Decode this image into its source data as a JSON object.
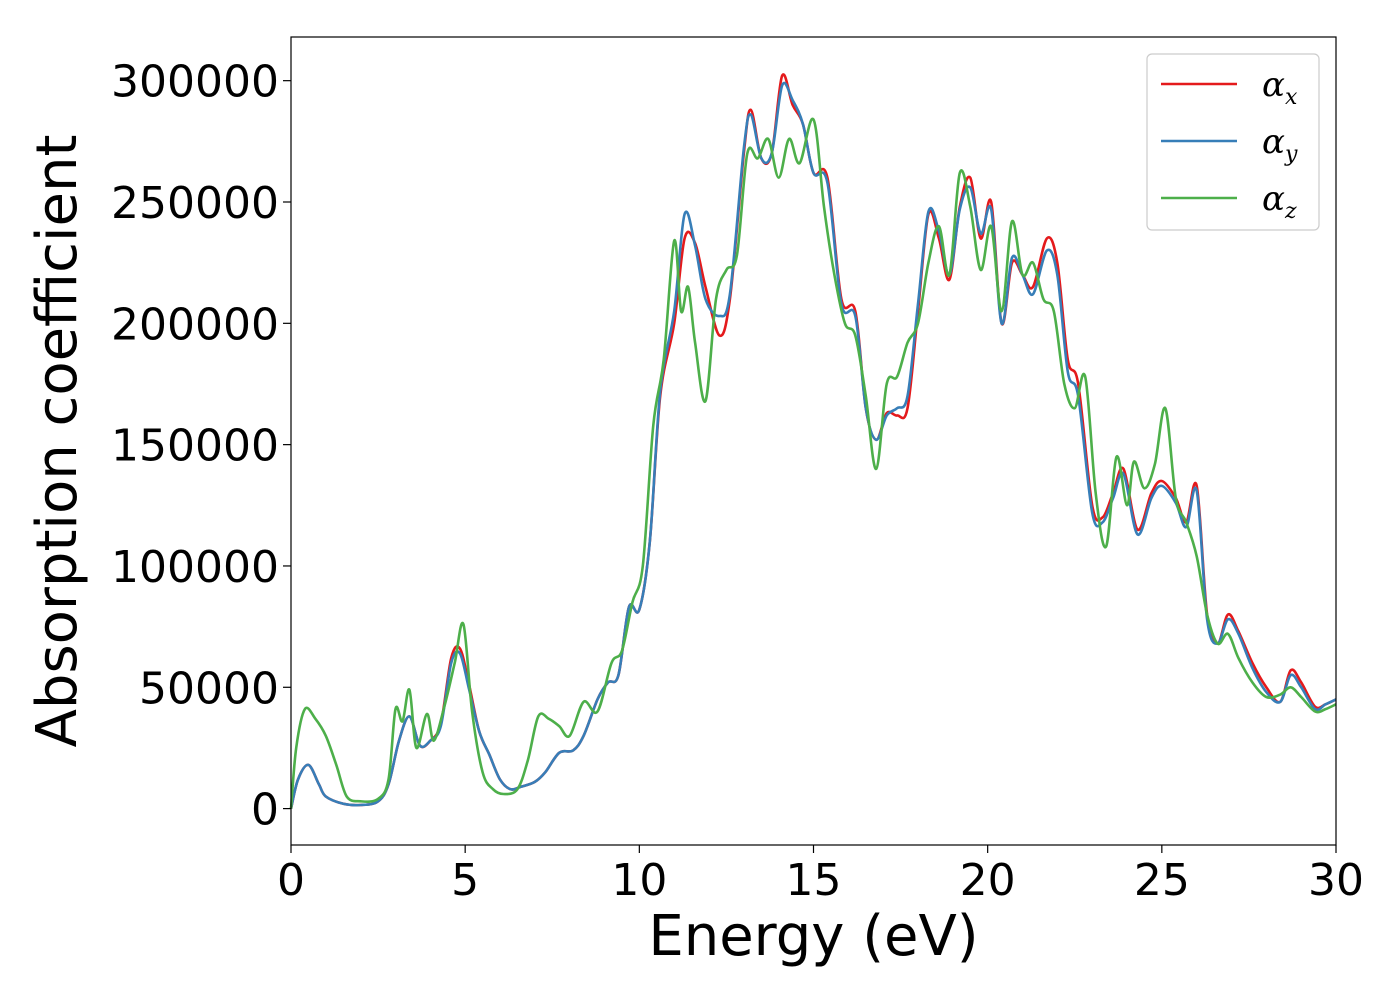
{
  "chart_data": {
    "type": "line",
    "title": "",
    "xlabel": "Energy (eV)",
    "ylabel": "Absorption coefficient",
    "xlim": [
      0,
      30
    ],
    "ylim": [
      -15000,
      318000
    ],
    "xticks": [
      0,
      5,
      10,
      15,
      20,
      25,
      30
    ],
    "yticks": [
      0,
      50000,
      100000,
      150000,
      200000,
      250000,
      300000
    ],
    "grid": false,
    "legend_position": "top-right",
    "series": [
      {
        "name": "α_x",
        "symbol": "α",
        "subscript": "x",
        "color": "#e41a1c",
        "points": [
          [
            0,
            0
          ],
          [
            0.2,
            12000
          ],
          [
            0.5,
            18000
          ],
          [
            0.8,
            10000
          ],
          [
            1.0,
            5000
          ],
          [
            1.5,
            2000
          ],
          [
            2.0,
            1500
          ],
          [
            2.5,
            3000
          ],
          [
            2.8,
            10000
          ],
          [
            3.1,
            28000
          ],
          [
            3.4,
            38000
          ],
          [
            3.7,
            26000
          ],
          [
            4.0,
            28000
          ],
          [
            4.3,
            35000
          ],
          [
            4.6,
            62000
          ],
          [
            4.85,
            66000
          ],
          [
            5.1,
            52000
          ],
          [
            5.4,
            32000
          ],
          [
            5.7,
            22000
          ],
          [
            6.0,
            12000
          ],
          [
            6.3,
            8000
          ],
          [
            6.6,
            9000
          ],
          [
            7.0,
            11000
          ],
          [
            7.3,
            15000
          ],
          [
            7.7,
            23000
          ],
          [
            8.1,
            24000
          ],
          [
            8.4,
            30000
          ],
          [
            8.8,
            45000
          ],
          [
            9.1,
            52000
          ],
          [
            9.4,
            55000
          ],
          [
            9.7,
            83000
          ],
          [
            10.0,
            82000
          ],
          [
            10.3,
            110000
          ],
          [
            10.6,
            170000
          ],
          [
            11.0,
            200000
          ],
          [
            11.3,
            235000
          ],
          [
            11.6,
            233000
          ],
          [
            11.9,
            215000
          ],
          [
            12.3,
            195000
          ],
          [
            12.6,
            210000
          ],
          [
            13.0,
            270000
          ],
          [
            13.2,
            288000
          ],
          [
            13.5,
            268000
          ],
          [
            13.8,
            270000
          ],
          [
            14.1,
            302000
          ],
          [
            14.4,
            290000
          ],
          [
            14.7,
            282000
          ],
          [
            15.0,
            262000
          ],
          [
            15.4,
            260000
          ],
          [
            15.8,
            210000
          ],
          [
            16.2,
            205000
          ],
          [
            16.5,
            165000
          ],
          [
            16.8,
            152000
          ],
          [
            17.1,
            163000
          ],
          [
            17.4,
            162000
          ],
          [
            17.7,
            165000
          ],
          [
            18.0,
            205000
          ],
          [
            18.3,
            245000
          ],
          [
            18.6,
            235000
          ],
          [
            18.9,
            218000
          ],
          [
            19.2,
            248000
          ],
          [
            19.5,
            260000
          ],
          [
            19.8,
            235000
          ],
          [
            20.1,
            250000
          ],
          [
            20.4,
            200000
          ],
          [
            20.7,
            225000
          ],
          [
            21.0,
            220000
          ],
          [
            21.3,
            215000
          ],
          [
            21.7,
            235000
          ],
          [
            22.0,
            225000
          ],
          [
            22.3,
            185000
          ],
          [
            22.6,
            175000
          ],
          [
            23.0,
            125000
          ],
          [
            23.3,
            120000
          ],
          [
            23.6,
            130000
          ],
          [
            23.9,
            140000
          ],
          [
            24.3,
            115000
          ],
          [
            24.7,
            130000
          ],
          [
            25.0,
            135000
          ],
          [
            25.4,
            128000
          ],
          [
            25.7,
            118000
          ],
          [
            26.0,
            133000
          ],
          [
            26.3,
            80000
          ],
          [
            26.6,
            68000
          ],
          [
            26.9,
            80000
          ],
          [
            27.2,
            73000
          ],
          [
            27.6,
            60000
          ],
          [
            28.0,
            50000
          ],
          [
            28.4,
            44000
          ],
          [
            28.7,
            57000
          ],
          [
            29.0,
            52000
          ],
          [
            29.4,
            42000
          ],
          [
            29.7,
            43000
          ],
          [
            30.0,
            45000
          ]
        ]
      },
      {
        "name": "α_y",
        "symbol": "α",
        "subscript": "y",
        "color": "#377eb8",
        "points": [
          [
            0,
            0
          ],
          [
            0.2,
            12000
          ],
          [
            0.5,
            18000
          ],
          [
            0.8,
            10000
          ],
          [
            1.0,
            5000
          ],
          [
            1.5,
            2000
          ],
          [
            2.0,
            1500
          ],
          [
            2.5,
            3000
          ],
          [
            2.8,
            10000
          ],
          [
            3.1,
            28000
          ],
          [
            3.4,
            38000
          ],
          [
            3.7,
            26000
          ],
          [
            4.0,
            28000
          ],
          [
            4.3,
            34000
          ],
          [
            4.6,
            60000
          ],
          [
            4.85,
            64000
          ],
          [
            5.1,
            50000
          ],
          [
            5.4,
            32000
          ],
          [
            5.7,
            22000
          ],
          [
            6.0,
            12000
          ],
          [
            6.3,
            8000
          ],
          [
            6.6,
            9000
          ],
          [
            7.0,
            11000
          ],
          [
            7.3,
            15000
          ],
          [
            7.7,
            23000
          ],
          [
            8.1,
            24000
          ],
          [
            8.4,
            30000
          ],
          [
            8.8,
            45000
          ],
          [
            9.1,
            52000
          ],
          [
            9.4,
            55000
          ],
          [
            9.7,
            83000
          ],
          [
            10.0,
            82000
          ],
          [
            10.3,
            110000
          ],
          [
            10.6,
            172000
          ],
          [
            11.0,
            205000
          ],
          [
            11.3,
            245000
          ],
          [
            11.6,
            232000
          ],
          [
            11.9,
            210000
          ],
          [
            12.3,
            203000
          ],
          [
            12.6,
            212000
          ],
          [
            13.0,
            272000
          ],
          [
            13.2,
            286000
          ],
          [
            13.5,
            268000
          ],
          [
            13.8,
            270000
          ],
          [
            14.1,
            298000
          ],
          [
            14.4,
            292000
          ],
          [
            14.7,
            282000
          ],
          [
            15.0,
            262000
          ],
          [
            15.4,
            258000
          ],
          [
            15.8,
            208000
          ],
          [
            16.2,
            203000
          ],
          [
            16.5,
            165000
          ],
          [
            16.8,
            152000
          ],
          [
            17.1,
            162000
          ],
          [
            17.4,
            165000
          ],
          [
            17.7,
            170000
          ],
          [
            18.0,
            208000
          ],
          [
            18.3,
            246000
          ],
          [
            18.6,
            238000
          ],
          [
            18.9,
            220000
          ],
          [
            19.2,
            247000
          ],
          [
            19.5,
            256000
          ],
          [
            19.8,
            237000
          ],
          [
            20.1,
            247000
          ],
          [
            20.4,
            200000
          ],
          [
            20.7,
            227000
          ],
          [
            21.0,
            220000
          ],
          [
            21.3,
            212000
          ],
          [
            21.7,
            230000
          ],
          [
            22.0,
            220000
          ],
          [
            22.3,
            180000
          ],
          [
            22.6,
            170000
          ],
          [
            23.0,
            122000
          ],
          [
            23.3,
            118000
          ],
          [
            23.6,
            128000
          ],
          [
            23.9,
            138000
          ],
          [
            24.3,
            113000
          ],
          [
            24.7,
            128000
          ],
          [
            25.0,
            133000
          ],
          [
            25.4,
            126000
          ],
          [
            25.7,
            116000
          ],
          [
            26.0,
            131000
          ],
          [
            26.3,
            78000
          ],
          [
            26.6,
            68000
          ],
          [
            26.9,
            78000
          ],
          [
            27.2,
            72000
          ],
          [
            27.6,
            58000
          ],
          [
            28.0,
            48000
          ],
          [
            28.4,
            44000
          ],
          [
            28.7,
            55000
          ],
          [
            29.0,
            50000
          ],
          [
            29.4,
            41000
          ],
          [
            29.7,
            43000
          ],
          [
            30.0,
            45000
          ]
        ]
      },
      {
        "name": "α_z",
        "symbol": "α",
        "subscript": "z",
        "color": "#4daf4a",
        "points": [
          [
            0,
            0
          ],
          [
            0.15,
            25000
          ],
          [
            0.4,
            41000
          ],
          [
            0.7,
            37000
          ],
          [
            1.0,
            30000
          ],
          [
            1.3,
            18000
          ],
          [
            1.6,
            5000
          ],
          [
            2.0,
            3000
          ],
          [
            2.5,
            4000
          ],
          [
            2.8,
            12000
          ],
          [
            3.0,
            41000
          ],
          [
            3.2,
            36000
          ],
          [
            3.4,
            49000
          ],
          [
            3.6,
            25000
          ],
          [
            3.9,
            39000
          ],
          [
            4.1,
            28000
          ],
          [
            4.4,
            42000
          ],
          [
            4.7,
            60000
          ],
          [
            4.95,
            76000
          ],
          [
            5.2,
            40000
          ],
          [
            5.5,
            15000
          ],
          [
            5.8,
            8000
          ],
          [
            6.1,
            6000
          ],
          [
            6.5,
            8000
          ],
          [
            6.8,
            20000
          ],
          [
            7.1,
            38000
          ],
          [
            7.4,
            37000
          ],
          [
            7.7,
            34000
          ],
          [
            8.0,
            30000
          ],
          [
            8.4,
            44000
          ],
          [
            8.8,
            40000
          ],
          [
            9.2,
            60000
          ],
          [
            9.5,
            65000
          ],
          [
            9.8,
            85000
          ],
          [
            10.1,
            100000
          ],
          [
            10.4,
            158000
          ],
          [
            10.7,
            185000
          ],
          [
            11.0,
            234000
          ],
          [
            11.2,
            205000
          ],
          [
            11.4,
            215000
          ],
          [
            11.6,
            192000
          ],
          [
            11.9,
            168000
          ],
          [
            12.2,
            210000
          ],
          [
            12.5,
            222000
          ],
          [
            12.8,
            228000
          ],
          [
            13.1,
            270000
          ],
          [
            13.4,
            268000
          ],
          [
            13.7,
            276000
          ],
          [
            14.0,
            260000
          ],
          [
            14.3,
            276000
          ],
          [
            14.6,
            266000
          ],
          [
            15.0,
            284000
          ],
          [
            15.3,
            248000
          ],
          [
            15.6,
            220000
          ],
          [
            15.9,
            200000
          ],
          [
            16.2,
            195000
          ],
          [
            16.5,
            170000
          ],
          [
            16.8,
            140000
          ],
          [
            17.1,
            175000
          ],
          [
            17.4,
            178000
          ],
          [
            17.7,
            192000
          ],
          [
            18.0,
            200000
          ],
          [
            18.3,
            225000
          ],
          [
            18.6,
            240000
          ],
          [
            18.9,
            220000
          ],
          [
            19.2,
            262000
          ],
          [
            19.5,
            248000
          ],
          [
            19.8,
            222000
          ],
          [
            20.1,
            240000
          ],
          [
            20.4,
            205000
          ],
          [
            20.7,
            242000
          ],
          [
            21.0,
            220000
          ],
          [
            21.3,
            225000
          ],
          [
            21.6,
            210000
          ],
          [
            21.9,
            205000
          ],
          [
            22.2,
            175000
          ],
          [
            22.5,
            165000
          ],
          [
            22.8,
            178000
          ],
          [
            23.1,
            130000
          ],
          [
            23.4,
            108000
          ],
          [
            23.7,
            145000
          ],
          [
            24.0,
            125000
          ],
          [
            24.2,
            143000
          ],
          [
            24.5,
            132000
          ],
          [
            24.8,
            142000
          ],
          [
            25.1,
            165000
          ],
          [
            25.4,
            128000
          ],
          [
            25.7,
            118000
          ],
          [
            26.0,
            104000
          ],
          [
            26.3,
            80000
          ],
          [
            26.6,
            68000
          ],
          [
            26.9,
            72000
          ],
          [
            27.2,
            62000
          ],
          [
            27.6,
            52000
          ],
          [
            28.0,
            46000
          ],
          [
            28.4,
            47000
          ],
          [
            28.7,
            50000
          ],
          [
            29.0,
            46000
          ],
          [
            29.4,
            40000
          ],
          [
            29.7,
            41000
          ],
          [
            30.0,
            43000
          ]
        ]
      }
    ]
  }
}
